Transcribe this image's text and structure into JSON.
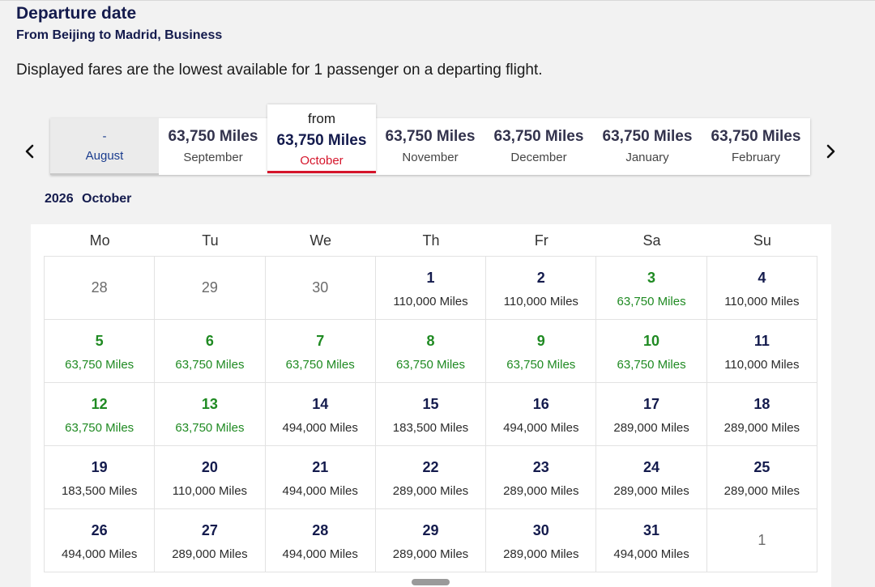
{
  "header": {
    "title": "Departure date",
    "route": "From Beijing to Madrid, Business",
    "info": "Displayed fares are the lowest available for 1 passenger on a departing flight."
  },
  "month_strip": {
    "prev_icon": "chevron-left-icon",
    "next_icon": "chevron-right-icon",
    "selected_prefix": "from",
    "tabs": [
      {
        "price": "-",
        "month": "August",
        "state": "disabled"
      },
      {
        "price": "63,750 Miles",
        "month": "September",
        "state": "normal"
      },
      {
        "price": "63,750 Miles",
        "month": "October",
        "state": "selected"
      },
      {
        "price": "63,750 Miles",
        "month": "November",
        "state": "normal"
      },
      {
        "price": "63,750 Miles",
        "month": "December",
        "state": "normal"
      },
      {
        "price": "63,750 Miles",
        "month": "January",
        "state": "normal"
      },
      {
        "price": "63,750 Miles",
        "month": "February",
        "state": "normal"
      }
    ]
  },
  "calendar": {
    "year": "2026",
    "month": "October",
    "weekdays": [
      "Mo",
      "Tu",
      "We",
      "Th",
      "Fr",
      "Sa",
      "Su"
    ],
    "days": [
      {
        "day": "28",
        "price": "",
        "type": "outside"
      },
      {
        "day": "29",
        "price": "",
        "type": "outside"
      },
      {
        "day": "30",
        "price": "",
        "type": "outside"
      },
      {
        "day": "1",
        "price": "110,000 Miles",
        "type": "normal"
      },
      {
        "day": "2",
        "price": "110,000 Miles",
        "type": "normal"
      },
      {
        "day": "3",
        "price": "63,750 Miles",
        "type": "low"
      },
      {
        "day": "4",
        "price": "110,000 Miles",
        "type": "normal"
      },
      {
        "day": "5",
        "price": "63,750 Miles",
        "type": "low"
      },
      {
        "day": "6",
        "price": "63,750 Miles",
        "type": "low"
      },
      {
        "day": "7",
        "price": "63,750 Miles",
        "type": "low"
      },
      {
        "day": "8",
        "price": "63,750 Miles",
        "type": "low"
      },
      {
        "day": "9",
        "price": "63,750 Miles",
        "type": "low"
      },
      {
        "day": "10",
        "price": "63,750 Miles",
        "type": "low"
      },
      {
        "day": "11",
        "price": "110,000 Miles",
        "type": "normal"
      },
      {
        "day": "12",
        "price": "63,750 Miles",
        "type": "low"
      },
      {
        "day": "13",
        "price": "63,750 Miles",
        "type": "low"
      },
      {
        "day": "14",
        "price": "494,000 Miles",
        "type": "normal"
      },
      {
        "day": "15",
        "price": "183,500 Miles",
        "type": "normal"
      },
      {
        "day": "16",
        "price": "494,000 Miles",
        "type": "normal"
      },
      {
        "day": "17",
        "price": "289,000 Miles",
        "type": "normal"
      },
      {
        "day": "18",
        "price": "289,000 Miles",
        "type": "normal"
      },
      {
        "day": "19",
        "price": "183,500 Miles",
        "type": "normal"
      },
      {
        "day": "20",
        "price": "110,000 Miles",
        "type": "normal"
      },
      {
        "day": "21",
        "price": "494,000 Miles",
        "type": "normal"
      },
      {
        "day": "22",
        "price": "289,000 Miles",
        "type": "normal"
      },
      {
        "day": "23",
        "price": "289,000 Miles",
        "type": "normal"
      },
      {
        "day": "24",
        "price": "289,000 Miles",
        "type": "normal"
      },
      {
        "day": "25",
        "price": "289,000 Miles",
        "type": "normal"
      },
      {
        "day": "26",
        "price": "494,000 Miles",
        "type": "normal"
      },
      {
        "day": "27",
        "price": "289,000 Miles",
        "type": "normal"
      },
      {
        "day": "28",
        "price": "494,000 Miles",
        "type": "normal"
      },
      {
        "day": "29",
        "price": "289,000 Miles",
        "type": "normal"
      },
      {
        "day": "30",
        "price": "289,000 Miles",
        "type": "normal"
      },
      {
        "day": "31",
        "price": "494,000 Miles",
        "type": "normal"
      },
      {
        "day": "1",
        "price": "",
        "type": "outside"
      }
    ]
  },
  "colors": {
    "navy": "#141b4d",
    "low_fare_green": "#1f8a22",
    "selected_red": "#d5152b",
    "disabled_blue": "#1a3c8e"
  }
}
